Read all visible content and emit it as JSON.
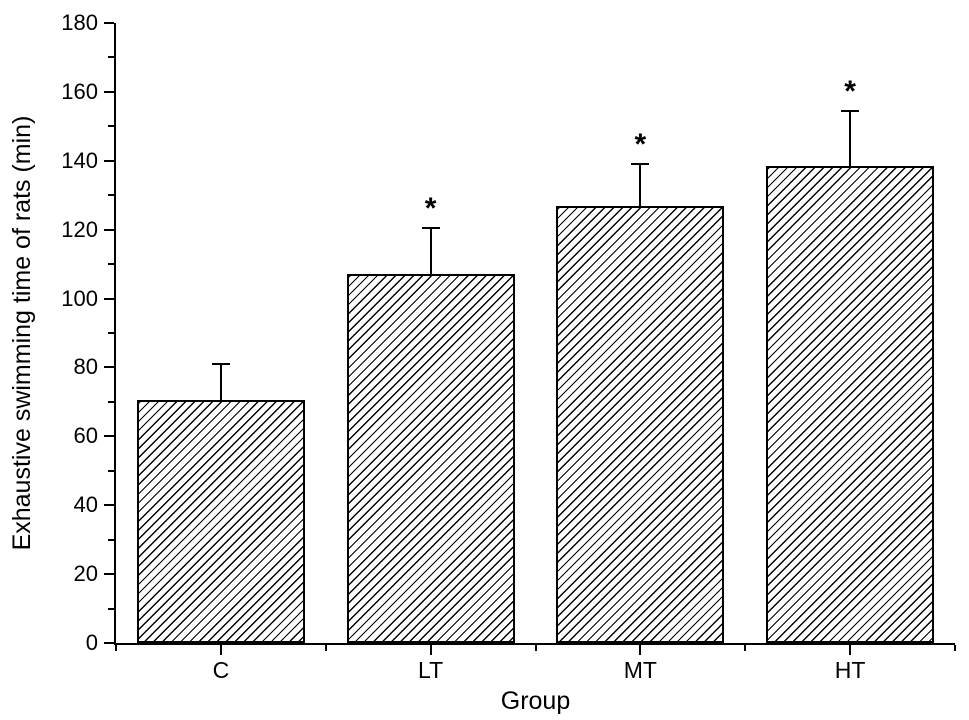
{
  "chart_data": {
    "type": "bar",
    "title": "",
    "xlabel": "Group",
    "ylabel": "Exhaustive swimming time of rats (min)",
    "categories": [
      "C",
      "LT",
      "MT",
      "HT"
    ],
    "values": [
      70.5,
      107,
      127,
      138.5
    ],
    "errors_plus": [
      10.5,
      13.5,
      12,
      16
    ],
    "significance": [
      "",
      "*",
      "*",
      "*"
    ],
    "ylim": [
      0,
      180
    ],
    "ytick_major_step": 20,
    "ytick_minor_step": 10,
    "bar_width_fraction": 0.8,
    "grid": false,
    "legend": "none",
    "bar_fill": "diagonal-forward-hatch",
    "colors": {
      "ink": "#000000",
      "background": "#ffffff"
    }
  }
}
